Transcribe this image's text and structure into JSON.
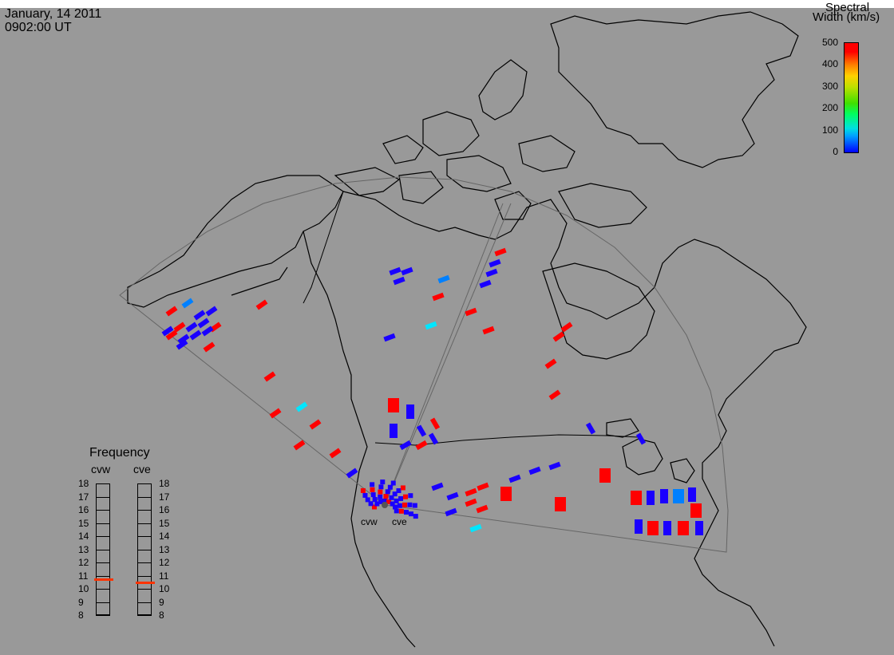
{
  "header": {
    "date": "January, 14 2011",
    "time": "0902:00 UT"
  },
  "colorbar": {
    "title_line1": "Spectral",
    "title_line2": "Width (km/s)",
    "ticks": [
      "500",
      "400",
      "300",
      "200",
      "100",
      "0"
    ],
    "range": [
      0,
      500
    ]
  },
  "frequency": {
    "title": "Frequency",
    "stations": [
      {
        "name": "cvw",
        "value": 10.7
      },
      {
        "name": "cve",
        "value": 10.5
      }
    ],
    "ticks": [
      "18",
      "17",
      "16",
      "15",
      "14",
      "13",
      "12",
      "11",
      "10",
      "9",
      "8"
    ],
    "indicator_color": "#ff3300"
  },
  "radar": {
    "site_labels": [
      "cvw",
      "cve"
    ]
  },
  "colors": {
    "background": "#999999",
    "coast": "#000000",
    "fov": "#666666",
    "red": "#ff0000",
    "blue": "#1a00ff",
    "lightblue": "#0080ff",
    "cyan": "#00e6ff"
  }
}
